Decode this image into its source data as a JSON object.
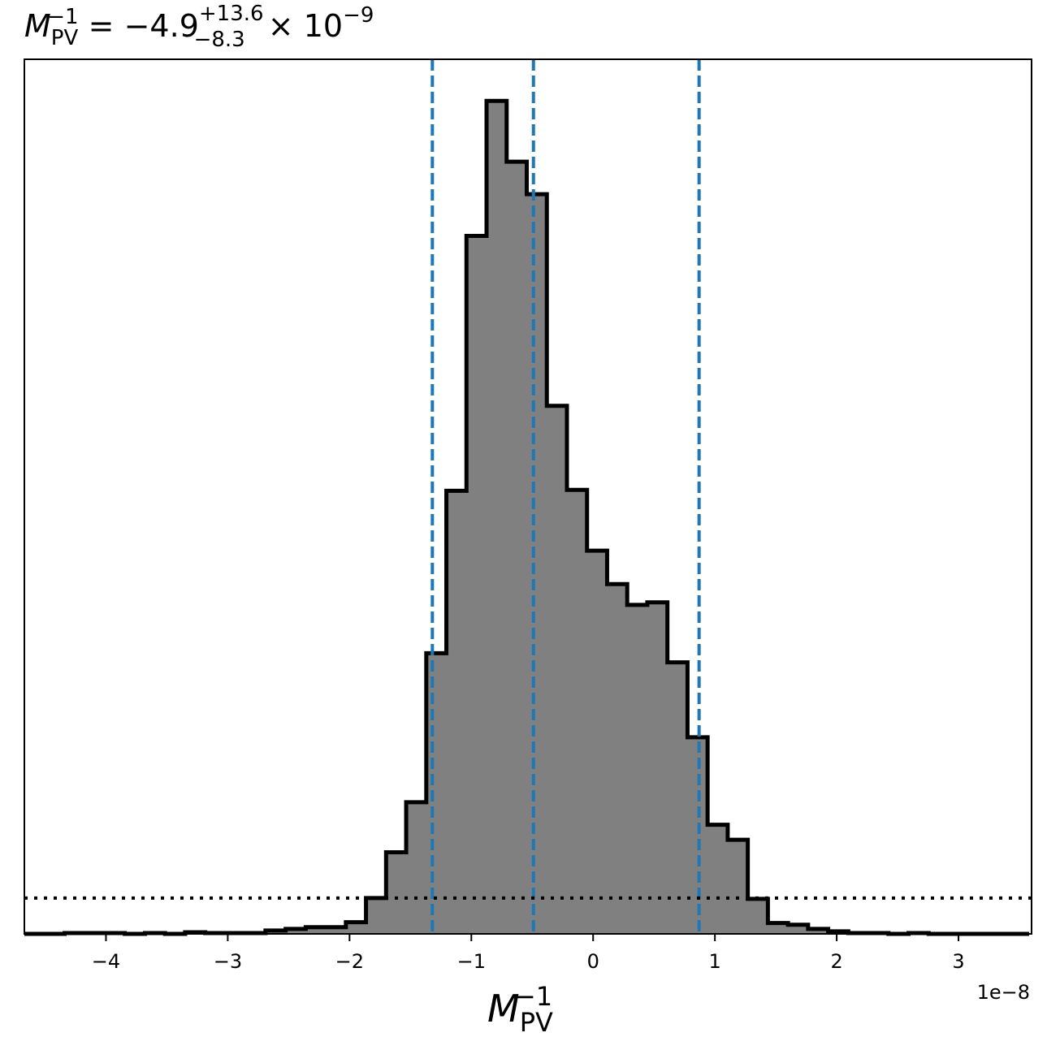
{
  "chart_data": {
    "type": "histogram",
    "title": {
      "symbol": "M",
      "sub": "PV",
      "sup": "−1",
      "equals": " = −4.9",
      "err_plus": "+13.6",
      "err_minus": "−8.3",
      "times": " × 10",
      "exponent": "−9"
    },
    "xlabel": {
      "symbol": "M",
      "sub": "PV",
      "sup": "−1"
    },
    "x_offset_text": "1e−8",
    "x_scale": 1e-08,
    "xlim": [
      -4.67,
      3.6
    ],
    "ylim": [
      0,
      1.05
    ],
    "xticks": [
      -4,
      -3,
      -2,
      -1,
      0,
      1,
      2,
      3
    ],
    "xtick_labels": [
      "−4",
      "−3",
      "−2",
      "−1",
      "0",
      "1",
      "2",
      "3"
    ],
    "yticks_shown": false,
    "bin_edges": [
      -4.67,
      -4.505,
      -4.34,
      -4.175,
      -4.01,
      -3.845,
      -3.68,
      -3.515,
      -3.35,
      -3.185,
      -3.02,
      -2.855,
      -2.69,
      -2.525,
      -2.36,
      -2.195,
      -2.03,
      -1.865,
      -1.7,
      -1.535,
      -1.37,
      -1.205,
      -1.04,
      -0.875,
      -0.71,
      -0.545,
      -0.38,
      -0.215,
      -0.05,
      0.115,
      0.28,
      0.445,
      0.61,
      0.775,
      0.94,
      1.105,
      1.27,
      1.435,
      1.6,
      1.765,
      1.93,
      2.095,
      2.26,
      2.425,
      2.59,
      2.755,
      2.92,
      3.085,
      3.25,
      3.415,
      3.58
    ],
    "counts": [
      0,
      0,
      0.001,
      0.001,
      0.001,
      0,
      0.001,
      0,
      0.002,
      0.001,
      0.001,
      0.001,
      0.004,
      0.006,
      0.008,
      0.008,
      0.014,
      0.043,
      0.098,
      0.158,
      0.337,
      0.532,
      0.838,
      1.0,
      0.927,
      0.888,
      0.634,
      0.533,
      0.46,
      0.42,
      0.395,
      0.398,
      0.326,
      0.236,
      0.131,
      0.113,
      0.042,
      0.013,
      0.011,
      0.006,
      0.003,
      0.001,
      0.001,
      0,
      0.001,
      0,
      0,
      0,
      0,
      0
    ],
    "fill_color": "#808080",
    "edge_color": "#000000",
    "quantile_lines": {
      "values": [
        -1.32,
        -0.49,
        0.87
      ],
      "color": "#1f77b4",
      "style": "dashed"
    },
    "reference_line": {
      "y": 0.043,
      "color": "#000000",
      "style": "dotted"
    }
  }
}
